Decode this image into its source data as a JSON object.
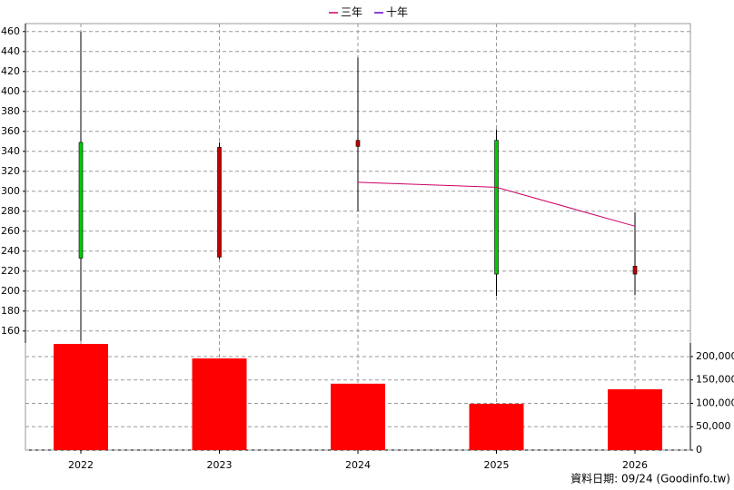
{
  "chart_data": {
    "type": "candlestick",
    "categories": [
      "2022",
      "2023",
      "2024",
      "2025",
      "2026"
    ],
    "open": [
      349,
      234,
      345,
      351,
      217
    ],
    "high": [
      460,
      349,
      434,
      362,
      279
    ],
    "low": [
      150,
      232,
      280,
      195,
      196
    ],
    "close": [
      233,
      344,
      351,
      217,
      225
    ],
    "up_color": "#c00000",
    "down_color": "#00cc00",
    "ylim": [
      148,
      468
    ],
    "yticks": [
      160,
      180,
      200,
      220,
      240,
      260,
      280,
      300,
      320,
      340,
      360,
      380,
      400,
      420,
      440,
      460
    ],
    "grid": true,
    "series": [
      {
        "name": "三年",
        "color": "#cc0066",
        "values": [
          null,
          null,
          309,
          304,
          265
        ]
      },
      {
        "name": "十年",
        "color": "#6600cc",
        "values": [
          null,
          null,
          null,
          null,
          null
        ]
      }
    ],
    "volume": {
      "color": "#ff0000",
      "values": [
        227000,
        196000,
        142000,
        99000,
        130000
      ],
      "y2lim": [
        0,
        229000
      ],
      "y2ticks": [
        0,
        {
          "value": 50000,
          "label": "50,000"
        },
        {
          "value": 100000,
          "label": "100,000"
        },
        {
          "value": 150000,
          "label": "150,000"
        },
        {
          "value": 200000,
          "label": "200,000"
        }
      ]
    },
    "source": "資料日期: 09/24  (Goodinfo.tw)"
  }
}
